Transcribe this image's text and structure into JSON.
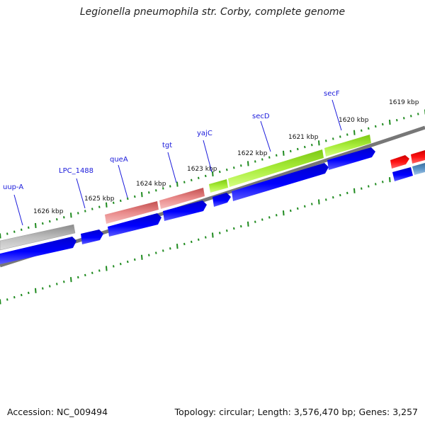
{
  "title": "Legionella pneumophila str. Corby, complete genome",
  "footer": {
    "accession": "Accession: NC_009494",
    "summary": "Topology: circular; Length: 3,576,470 bp; Genes: 3,257"
  },
  "colors": {
    "background": "#ffffff",
    "gene_label": "#1a1adb",
    "cds": "#0000ee",
    "cds_light": "#5c5cff",
    "backbone": "#888888",
    "tick": "#1e8a1e",
    "tick_label": "#111111",
    "gene_gray": "#a8a8a8",
    "gene_pink": "#d96868",
    "gene_green": "#99dd22",
    "gene_red": "#ee1111",
    "gene_steel": "#4682b4"
  },
  "scale_labels": [
    {
      "label": "1626 kbp",
      "kbp": 1626
    },
    {
      "label": "1625 kbp",
      "kbp": 1625
    },
    {
      "label": "1624 kbp",
      "kbp": 1624
    },
    {
      "label": "1623 kbp",
      "kbp": 1623
    },
    {
      "label": "1622 kbp",
      "kbp": 1622
    },
    {
      "label": "1621 kbp",
      "kbp": 1621
    },
    {
      "label": "1620 kbp",
      "kbp": 1620
    },
    {
      "label": "1619 kbp",
      "kbp": 1619
    }
  ],
  "genes": [
    {
      "name": "uup-A",
      "color": "gray"
    },
    {
      "name": "LPC_1488",
      "color": "none"
    },
    {
      "name": "queA",
      "color": "pink"
    },
    {
      "name": "tgt",
      "color": "pink"
    },
    {
      "name": "yajC",
      "color": "green"
    },
    {
      "name": "secD",
      "color": "green"
    },
    {
      "name": "secF",
      "color": "green"
    }
  ]
}
